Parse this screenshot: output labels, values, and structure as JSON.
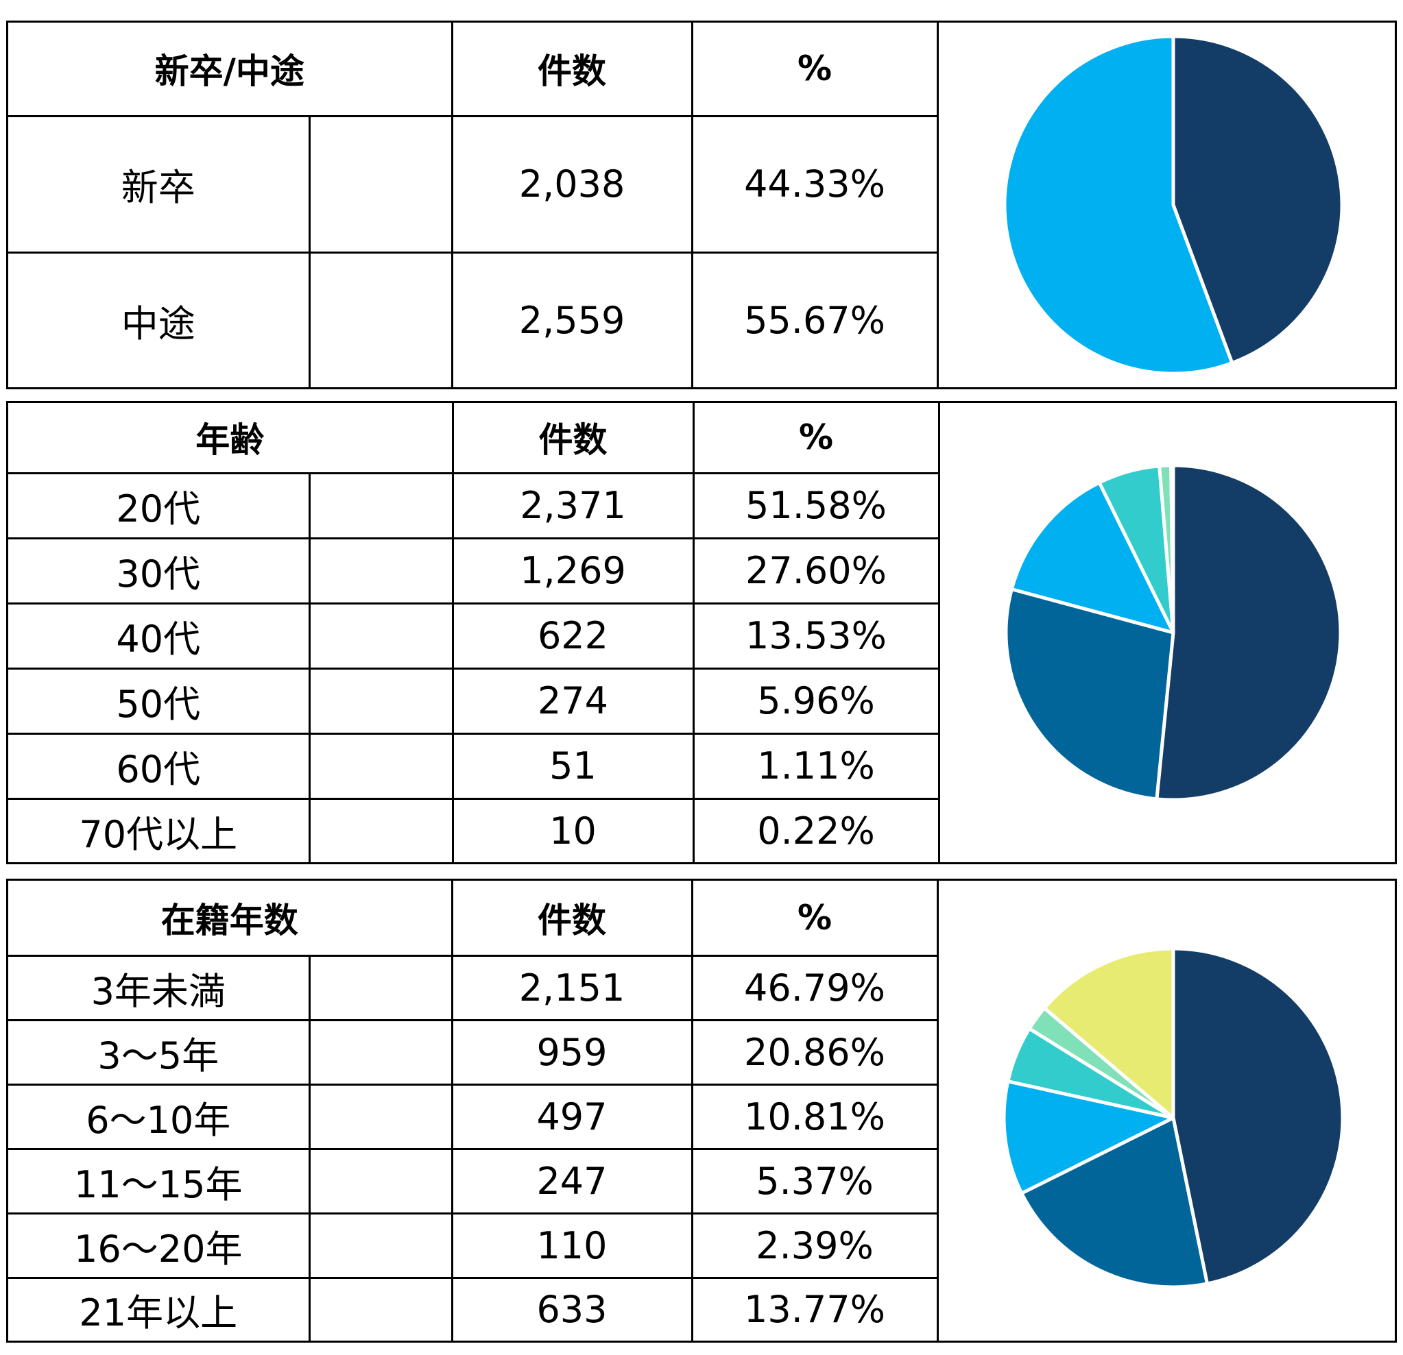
{
  "colors": {
    "c1": "#133C66",
    "c2": "#02659A",
    "c3": "#00B0F0",
    "c4": "#33CCCC",
    "c5": "#80E0B8",
    "c6": "#E8EB72"
  },
  "sections": [
    {
      "header": {
        "category": "新卒/中途",
        "count": "件数",
        "percent": "%"
      },
      "rows": [
        {
          "label": "新卒",
          "count": "2,038",
          "percent": "44.33%",
          "color": "#133C66"
        },
        {
          "label": "中途",
          "count": "2,559",
          "percent": "55.67%",
          "color": "#00B0F0"
        }
      ]
    },
    {
      "header": {
        "category": "年齢",
        "count": "件数",
        "percent": "%"
      },
      "rows": [
        {
          "label": "20代",
          "count": "2,371",
          "percent": "51.58%",
          "color": "#133C66"
        },
        {
          "label": "30代",
          "count": "1,269",
          "percent": "27.60%",
          "color": "#02659A"
        },
        {
          "label": "40代",
          "count": "622",
          "percent": "13.53%",
          "color": "#00B0F0"
        },
        {
          "label": "50代",
          "count": "274",
          "percent": "5.96%",
          "color": "#33CCCC"
        },
        {
          "label": "60代",
          "count": "51",
          "percent": "1.11%",
          "color": "#80E0B8"
        },
        {
          "label": "70代以上",
          "count": "10",
          "percent": "0.22%",
          "color": "#E8EB72"
        }
      ]
    },
    {
      "header": {
        "category": "在籍年数",
        "count": "件数",
        "percent": "%"
      },
      "rows": [
        {
          "label": "3年未満",
          "count": "2,151",
          "percent": "46.79%",
          "color": "#133C66"
        },
        {
          "label": "3～5年",
          "count": "959",
          "percent": "20.86%",
          "color": "#02659A"
        },
        {
          "label": "6～10年",
          "count": "497",
          "percent": "10.81%",
          "color": "#00B0F0"
        },
        {
          "label": "11～15年",
          "count": "247",
          "percent": "5.37%",
          "color": "#33CCCC"
        },
        {
          "label": "16～20年",
          "count": "110",
          "percent": "2.39%",
          "color": "#80E0B8"
        },
        {
          "label": "21年以上",
          "count": "633",
          "percent": "13.77%",
          "color": "#E8EB72"
        }
      ]
    }
  ],
  "chart_data": [
    {
      "type": "pie",
      "title": "新卒/中途",
      "categories": [
        "新卒",
        "中途"
      ],
      "values": [
        2038,
        2559
      ],
      "percentages": [
        44.33,
        55.67
      ],
      "colors": [
        "#133C66",
        "#00B0F0"
      ]
    },
    {
      "type": "pie",
      "title": "年齢",
      "categories": [
        "20代",
        "30代",
        "40代",
        "50代",
        "60代",
        "70代以上"
      ],
      "values": [
        2371,
        1269,
        622,
        274,
        51,
        10
      ],
      "percentages": [
        51.58,
        27.6,
        13.53,
        5.96,
        1.11,
        0.22
      ],
      "colors": [
        "#133C66",
        "#02659A",
        "#00B0F0",
        "#33CCCC",
        "#80E0B8",
        "#E8EB72"
      ]
    },
    {
      "type": "pie",
      "title": "在籍年数",
      "categories": [
        "3年未満",
        "3～5年",
        "6～10年",
        "11～15年",
        "16～20年",
        "21年以上"
      ],
      "values": [
        2151,
        959,
        497,
        247,
        110,
        633
      ],
      "percentages": [
        46.79,
        20.86,
        10.81,
        5.37,
        2.39,
        13.77
      ],
      "colors": [
        "#133C66",
        "#02659A",
        "#00B0F0",
        "#33CCCC",
        "#80E0B8",
        "#E8EB72"
      ]
    }
  ]
}
